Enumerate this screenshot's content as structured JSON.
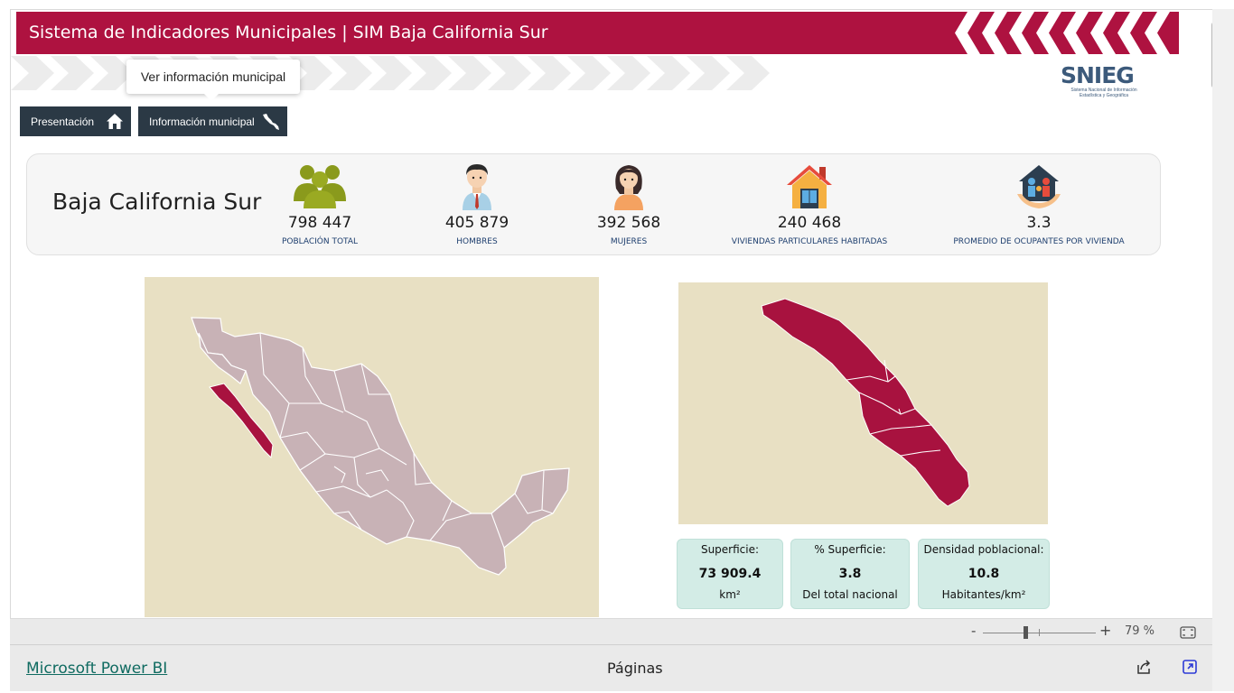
{
  "header": {
    "title": "Sistema de Indicadores Municipales | SIM Baja California Sur",
    "brand_color": "#ae1240"
  },
  "tooltip": {
    "text": "Ver información municipal"
  },
  "nav": {
    "presentacion_label": "Presentación",
    "presentacion_icon": "home-icon",
    "info_label": "Información municipal",
    "info_icon": "baja-california-icon"
  },
  "logo": {
    "word": "SNIEG",
    "subtitle": "Sistema Nacional de Información Estadística y Geográfica"
  },
  "stats": {
    "state": "Baja California Sur",
    "items": [
      {
        "value": "798 447",
        "label": "POBLACIÓN TOTAL",
        "icon": "people-group-icon"
      },
      {
        "value": "405 879",
        "label": "HOMBRES",
        "icon": "man-icon"
      },
      {
        "value": "392 568",
        "label": "MUJERES",
        "icon": "woman-icon"
      },
      {
        "value": "240 468",
        "label": "VIVIENDAS PARTICULARES HABITADAS",
        "icon": "house-icon"
      },
      {
        "value": "3.3",
        "label": "PROMEDIO DE OCUPANTES POR VIVIENDA",
        "icon": "family-home-icon"
      }
    ]
  },
  "info_boxes": {
    "superficie": {
      "title": "Superficie:",
      "value": "73 909.4",
      "unit": "km²"
    },
    "pct_superficie": {
      "title": "% Superficie:",
      "value": "3.8",
      "unit": "Del total nacional"
    },
    "densidad": {
      "title": "Densidad poblacional:",
      "value": "10.8",
      "unit": "Habitantes/km²"
    }
  },
  "zoom": {
    "minus": "-",
    "plus": "+",
    "value": "79 %"
  },
  "footer": {
    "link": "Microsoft Power BI",
    "pages": "Páginas"
  },
  "colors": {
    "map_background": "#e8e0c3",
    "country_fill": "#c8b2b6",
    "highlight": "#a8123f",
    "nav_button": "#2b3945",
    "info_box": "#d3ece6"
  }
}
